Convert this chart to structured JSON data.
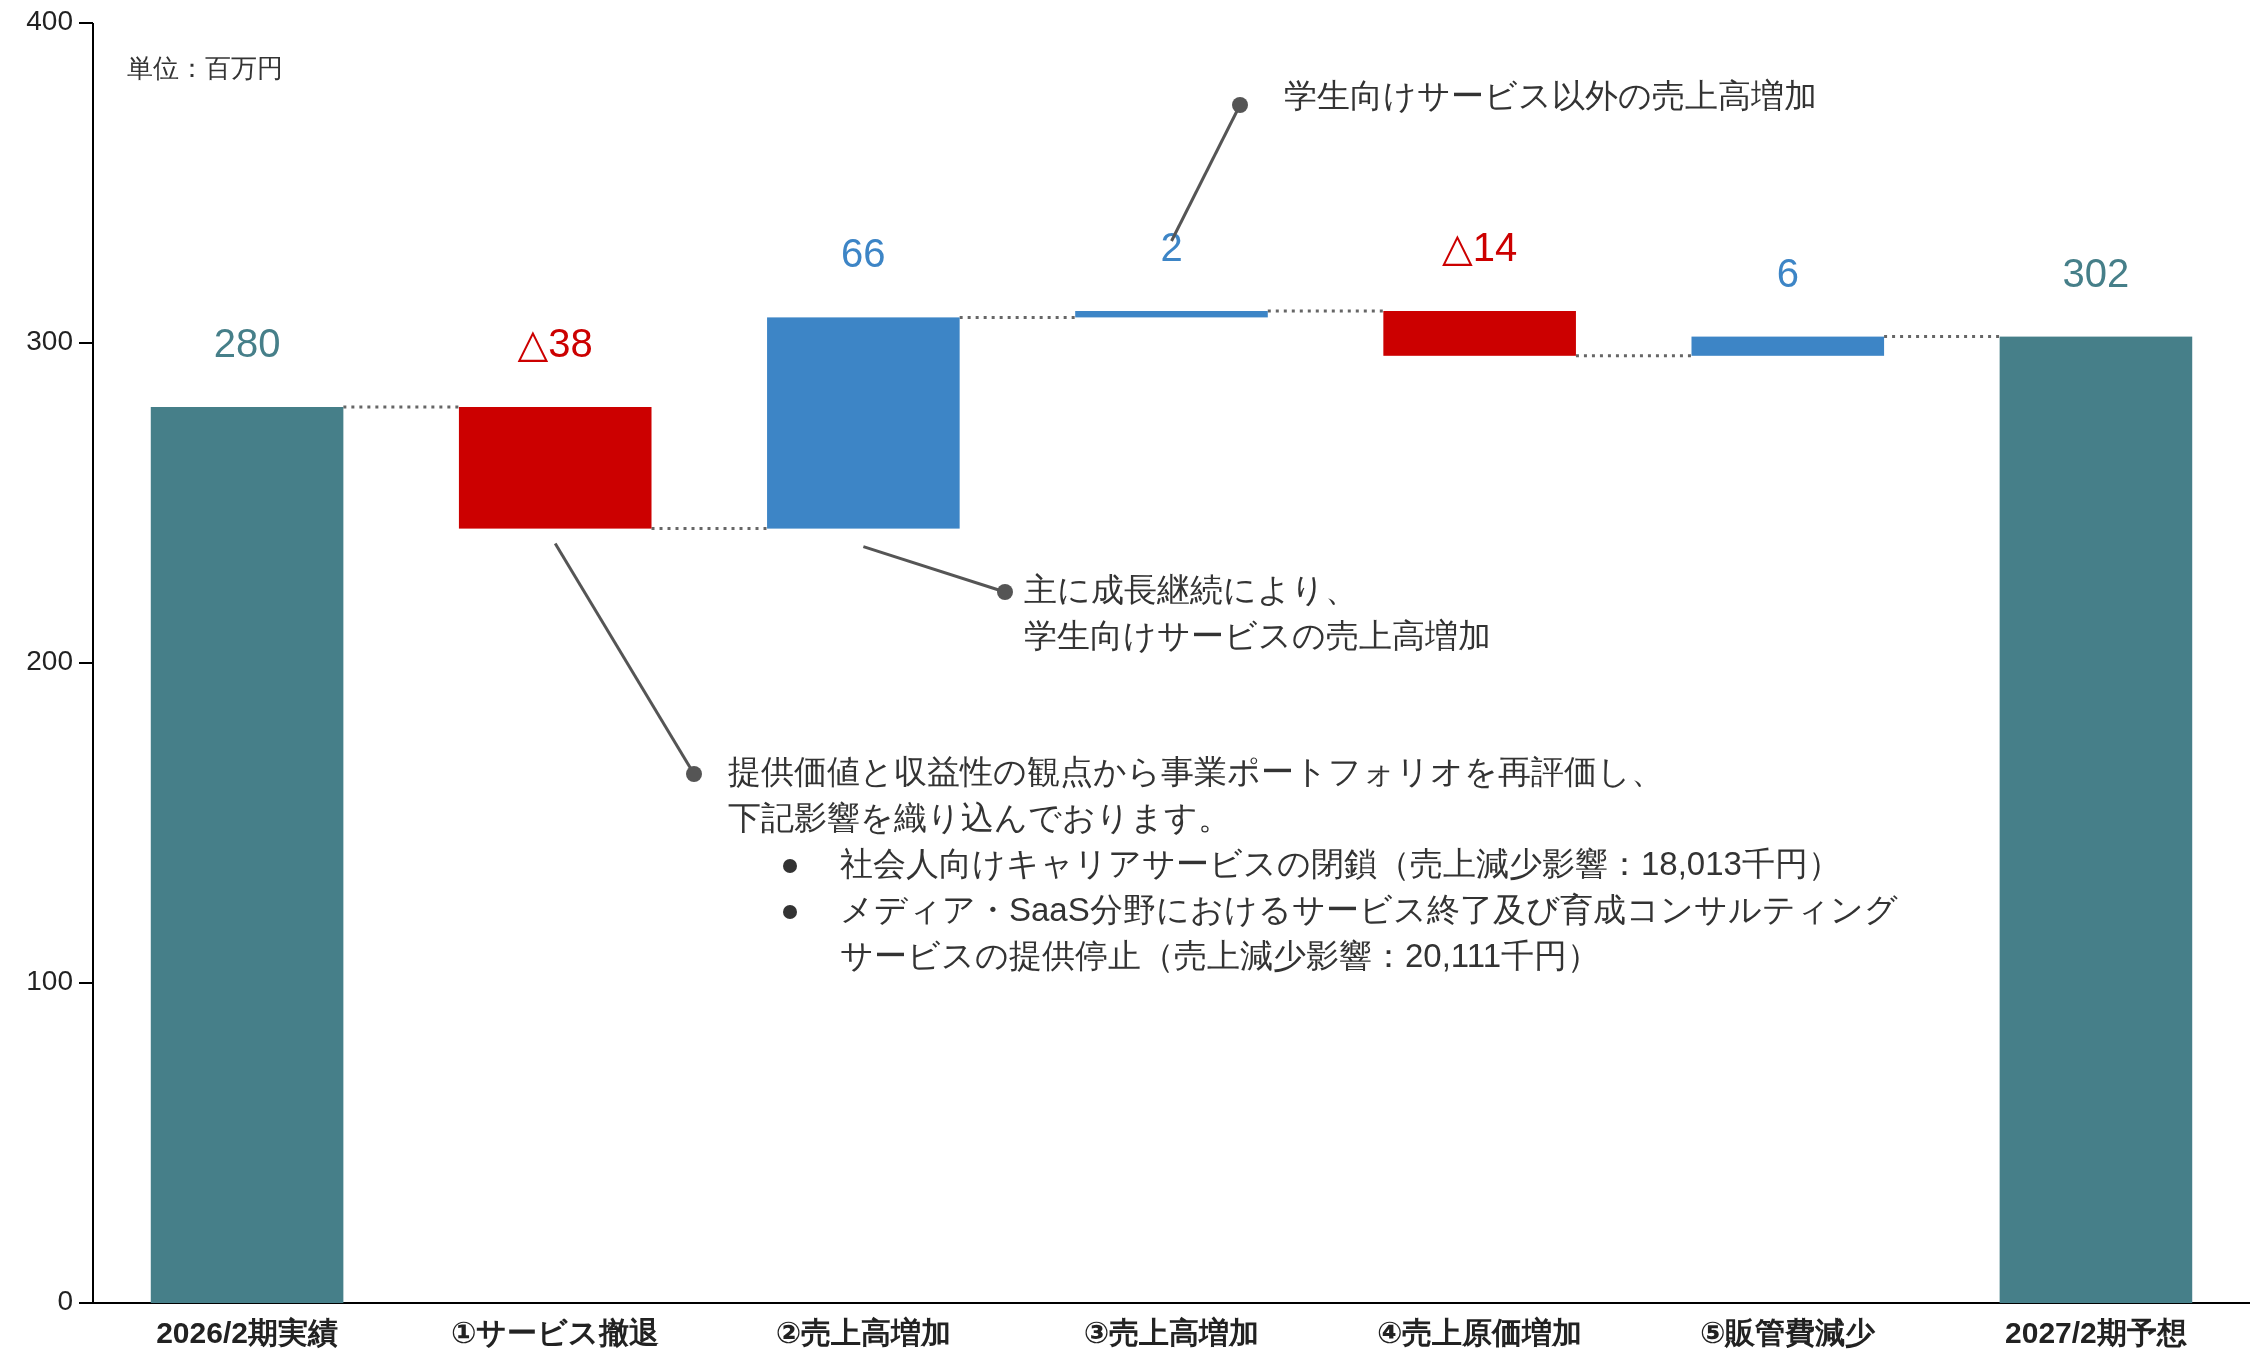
{
  "chart_data": {
    "type": "bar",
    "categories": [
      "2026/2期実績",
      "①サービス撤退",
      "②売上高増加",
      "③売上高増加",
      "④売上原価増加",
      "⑤販管費減少",
      "2027/2期予想"
    ],
    "values": [
      280,
      -38,
      66,
      2,
      -14,
      6,
      302
    ],
    "base": [
      0,
      280,
      242,
      308,
      310,
      296,
      0
    ],
    "colors": [
      "#467f89",
      "#cc0000",
      "#3d85c6",
      "#3d85c6",
      "#cc0000",
      "#3d85c6",
      "#467f89"
    ],
    "value_labels": [
      "280",
      "△38",
      "66",
      "2",
      "△14",
      "6",
      "302"
    ],
    "ylim": [
      0,
      400
    ],
    "yticks": [
      0,
      100,
      200,
      300,
      400
    ],
    "annotations": [
      "単位：百万円",
      "学生向けサービス以外の売上高増加",
      "主に成長継続により、",
      "学生向けサービスの売上高増加",
      "提供価値と収益性の観点から事業ポートフォリオを再評価し、",
      "下記影響を織り込んでおります。",
      "社会人向けキャリアサービスの閉鎖（売上減少影響：18,013千円）",
      "メディア・SaaS分野におけるサービス終了及び育成コンサルティング",
      "サービスの提供停止（売上減少影響：20,111千円）"
    ]
  }
}
